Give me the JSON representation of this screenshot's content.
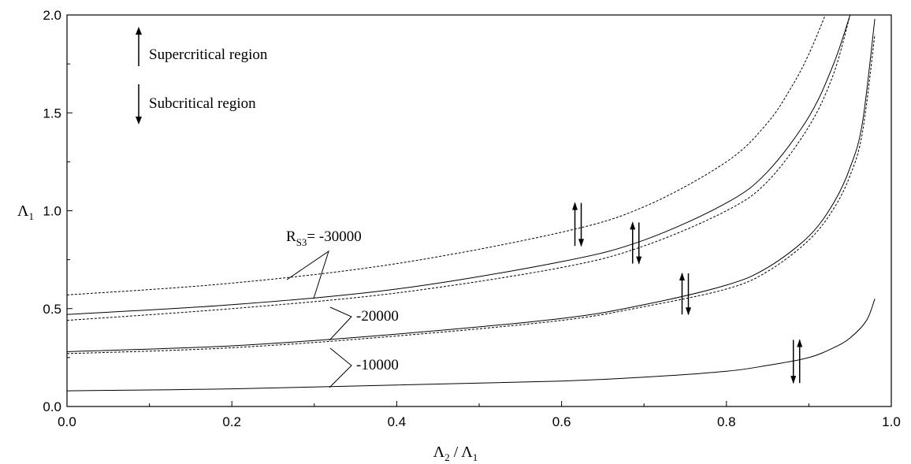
{
  "chart_data": {
    "type": "line",
    "xlabel": {
      "main": "Λ",
      "sub1": "2",
      "mid": " / Λ",
      "sub2": "1"
    },
    "ylabel": {
      "main": "Λ",
      "sub": "1"
    },
    "xlim": [
      0.0,
      1.0
    ],
    "ylim": [
      0.0,
      2.0
    ],
    "x_ticks": [
      "0.0",
      "0.2",
      "0.4",
      "0.6",
      "0.8",
      "1.0"
    ],
    "y_ticks": [
      "0.0",
      "0.5",
      "1.0",
      "1.5",
      "2.0"
    ],
    "grid": false,
    "legend_notes": {
      "supercritical": "Supercritical region",
      "subcritical": "Subcritical region"
    },
    "labels": {
      "rs3_main": "R",
      "rs3_sub": "S3",
      "rs3_value": "= -30000",
      "m20": "-20000",
      "m10": "-10000"
    },
    "series": [
      {
        "style": "solid",
        "x": [
          0.0,
          0.2,
          0.4,
          0.6,
          0.7,
          0.8,
          0.85,
          0.9,
          0.93,
          0.95
        ],
        "y": [
          0.47,
          0.52,
          0.6,
          0.74,
          0.85,
          1.04,
          1.2,
          1.48,
          1.75,
          2.0
        ]
      },
      {
        "style": "dashed",
        "x": [
          0.0,
          0.2,
          0.4,
          0.6,
          0.7,
          0.8,
          0.85,
          0.88,
          0.9,
          0.92
        ],
        "y": [
          0.57,
          0.63,
          0.73,
          0.89,
          1.02,
          1.25,
          1.45,
          1.64,
          1.8,
          2.0
        ]
      },
      {
        "style": "dashed",
        "x": [
          0.0,
          0.2,
          0.4,
          0.6,
          0.7,
          0.8,
          0.85,
          0.9,
          0.93,
          0.95
        ],
        "y": [
          0.44,
          0.5,
          0.58,
          0.71,
          0.82,
          1.0,
          1.15,
          1.43,
          1.7,
          2.0
        ]
      },
      {
        "style": "solid",
        "x": [
          0.0,
          0.2,
          0.4,
          0.6,
          0.7,
          0.8,
          0.85,
          0.9,
          0.93,
          0.95,
          0.965,
          0.98
        ],
        "y": [
          0.28,
          0.31,
          0.37,
          0.45,
          0.52,
          0.62,
          0.71,
          0.87,
          1.04,
          1.22,
          1.45,
          1.98
        ]
      },
      {
        "style": "dashed",
        "x": [
          0.0,
          0.2,
          0.4,
          0.6,
          0.7,
          0.8,
          0.85,
          0.9,
          0.93,
          0.95,
          0.965,
          0.98
        ],
        "y": [
          0.27,
          0.3,
          0.36,
          0.44,
          0.51,
          0.6,
          0.69,
          0.85,
          1.01,
          1.18,
          1.4,
          1.9
        ]
      },
      {
        "style": "solid",
        "x": [
          0.0,
          0.2,
          0.4,
          0.6,
          0.7,
          0.8,
          0.85,
          0.9,
          0.93,
          0.95,
          0.97,
          0.98
        ],
        "y": [
          0.08,
          0.09,
          0.11,
          0.13,
          0.15,
          0.18,
          0.21,
          0.25,
          0.3,
          0.35,
          0.44,
          0.55
        ]
      }
    ],
    "arrow_pairs": [
      {
        "x": 0.62,
        "y_low": 0.82,
        "y_high": 1.04,
        "left": "up"
      },
      {
        "x": 0.69,
        "y_low": 0.73,
        "y_high": 0.94,
        "left": "up"
      },
      {
        "x": 0.75,
        "y_low": 0.47,
        "y_high": 0.68,
        "left": "up"
      },
      {
        "x": 0.885,
        "y_low": 0.12,
        "y_high": 0.34,
        "left": "down"
      }
    ]
  }
}
